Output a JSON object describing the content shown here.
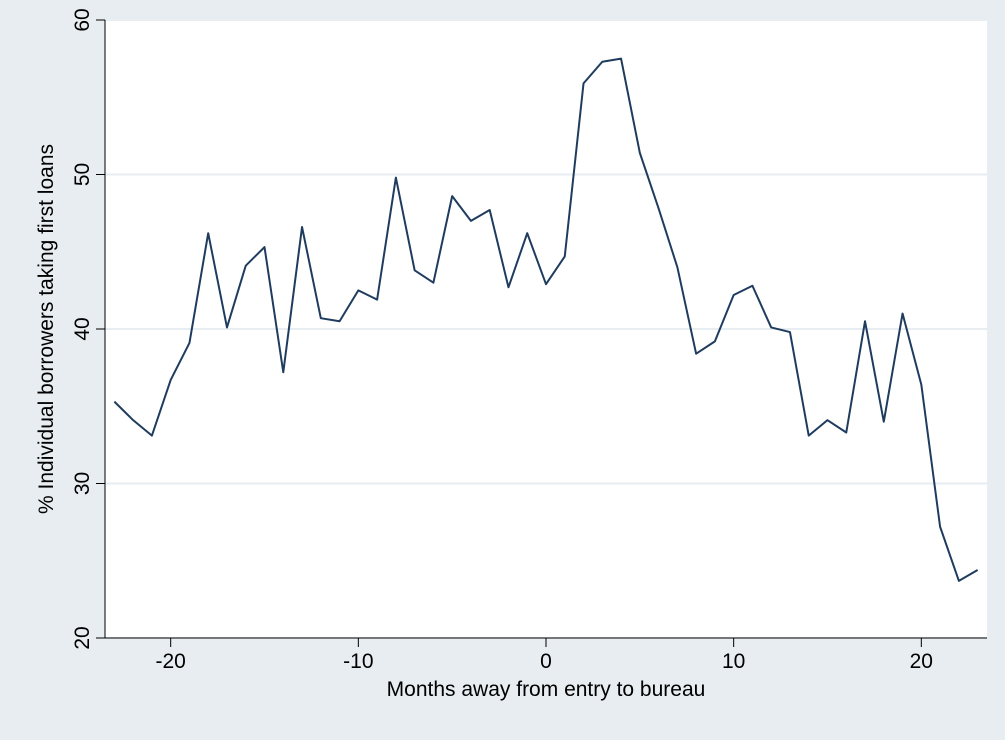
{
  "chart_data": {
    "type": "line",
    "title": "",
    "xlabel": "Months away from entry to bureau",
    "ylabel": "% Individual borrowers taking first loans",
    "xlim": [
      -23.5,
      23.5
    ],
    "ylim": [
      20,
      60
    ],
    "xticks": [
      -20,
      -10,
      0,
      10,
      20
    ],
    "xtick_labels": [
      "-20",
      "-10",
      "0",
      "10",
      "20"
    ],
    "yticks": [
      20,
      30,
      40,
      50,
      60
    ],
    "ytick_labels": [
      "20",
      "30",
      "40",
      "50",
      "60"
    ],
    "grid": "horizontal",
    "legend": "none",
    "colors": {
      "background": "#e7edf0",
      "plot_area": "#ffffff",
      "grid": "#e7edf0",
      "line": "#1f3c5e",
      "axis": "#000000"
    },
    "series": [
      {
        "x": [
          -23,
          -22,
          -21,
          -20,
          -19,
          -18,
          -17,
          -16,
          -15,
          -14,
          -13,
          -12,
          -11,
          -10,
          -9,
          -8,
          -7,
          -6,
          -5,
          -4,
          -3,
          -2,
          -1,
          0,
          1,
          2,
          3,
          4,
          5,
          6,
          7,
          8,
          9,
          10,
          11,
          12,
          13,
          14,
          15,
          16,
          17,
          18,
          19,
          20,
          21,
          22,
          23
        ],
        "values": [
          35.3,
          34.1,
          33.1,
          36.7,
          39.1,
          46.2,
          40.1,
          44.1,
          45.3,
          37.2,
          46.6,
          40.7,
          40.5,
          42.5,
          41.9,
          49.8,
          43.8,
          43.0,
          48.6,
          47.0,
          47.7,
          42.7,
          46.2,
          42.9,
          44.7,
          55.9,
          57.3,
          57.5,
          51.4,
          47.8,
          44.0,
          38.4,
          39.2,
          42.2,
          42.8,
          40.1,
          39.8,
          33.1,
          34.1,
          33.3,
          40.5,
          34.0,
          41.0,
          36.4,
          27.2,
          23.7,
          24.4
        ]
      }
    ]
  }
}
